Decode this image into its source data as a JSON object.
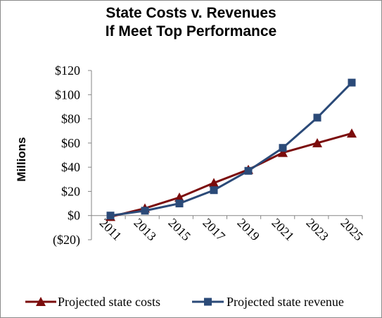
{
  "chart_data": {
    "type": "line",
    "title_line1": "State Costs v. Revenues",
    "title_line2": "If Meet Top Performance",
    "ylabel": "Millions",
    "xlabel": "",
    "ylim": [
      -20,
      120
    ],
    "ytick_values": [
      -20,
      0,
      20,
      40,
      60,
      80,
      100,
      120
    ],
    "ytick_labels": [
      "($20)",
      "$0",
      "$20",
      "$40",
      "$60",
      "$80",
      "$100",
      "$120"
    ],
    "x": [
      "2011",
      "2013",
      "2015",
      "2017",
      "2019",
      "2021",
      "2023",
      "2025"
    ],
    "grid": false,
    "legend_position": "bottom",
    "series": [
      {
        "name": "Projected state costs",
        "values": [
          -1,
          6,
          15,
          27,
          38,
          52,
          60,
          68
        ],
        "color": "#7b0c0c",
        "marker": "triangle"
      },
      {
        "name": "Projected state revenue",
        "values": [
          0,
          4,
          10,
          21,
          37,
          56,
          81,
          110
        ],
        "color": "#2b4a78",
        "marker": "square"
      }
    ]
  }
}
